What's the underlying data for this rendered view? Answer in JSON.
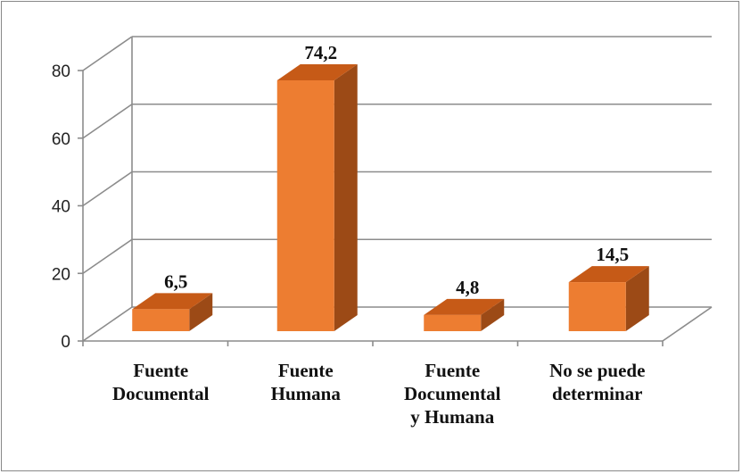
{
  "chart_data": {
    "type": "bar",
    "style": "3d-column",
    "categories": [
      [
        "Fuente",
        "Documental"
      ],
      [
        "Fuente",
        "Humana"
      ],
      [
        "Fuente",
        "Documental",
        "y Humana"
      ],
      [
        "No se puede",
        "determinar"
      ]
    ],
    "values": [
      6.5,
      74.2,
      4.8,
      14.5
    ],
    "data_labels": [
      "6,5",
      "74,2",
      "4,8",
      "14,5"
    ],
    "yticks": [
      "0",
      "20",
      "40",
      "60",
      "80"
    ],
    "ylim": [
      0,
      80
    ],
    "grid": true,
    "legend": "none",
    "colors": {
      "bar_front": "#ED7D31",
      "bar_top": "#C65A17",
      "bar_side": "#9C4A16",
      "grid": "#8C8C8C"
    }
  }
}
